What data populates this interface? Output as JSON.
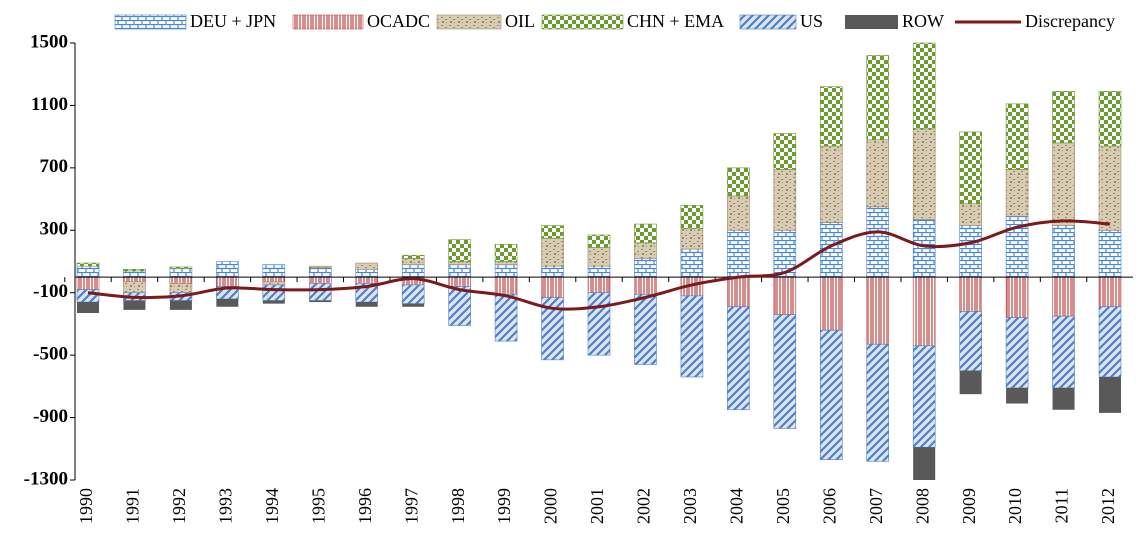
{
  "chart_data": {
    "type": "bar",
    "categories": [
      "1990",
      "1991",
      "1992",
      "1993",
      "1994",
      "1995",
      "1996",
      "1997",
      "1998",
      "1999",
      "2000",
      "2001",
      "2002",
      "2003",
      "2004",
      "2005",
      "2006",
      "2007",
      "2008",
      "2009",
      "2010",
      "2011",
      "2012"
    ],
    "ylim": [
      -1300,
      1500
    ],
    "yticks": [
      -1300,
      -900,
      -500,
      -100,
      300,
      700,
      1100,
      1500
    ],
    "series": [
      {
        "name": "DEU + JPN",
        "color": "#4a86d8",
        "pattern": "brick",
        "values": [
          70,
          40,
          55,
          100,
          80,
          60,
          50,
          80,
          80,
          80,
          70,
          70,
          120,
          180,
          300,
          300,
          350,
          450,
          370,
          330,
          390,
          330,
          300
        ]
      },
      {
        "name": "OCADC",
        "color": "#c0504d",
        "pattern": "vertical",
        "values": [
          -80,
          -30,
          -40,
          -60,
          -30,
          -40,
          -40,
          -50,
          -60,
          -110,
          -130,
          -100,
          -110,
          -120,
          -190,
          -240,
          -340,
          -430,
          -440,
          -220,
          -260,
          -250,
          -190
        ]
      },
      {
        "name": "OIL",
        "color": "#9c8763",
        "pattern": "speckle",
        "values": [
          0,
          -70,
          -60,
          0,
          -20,
          10,
          40,
          40,
          20,
          20,
          180,
          120,
          100,
          130,
          220,
          390,
          490,
          430,
          580,
          140,
          300,
          530,
          540
        ]
      },
      {
        "name": "CHN + EMA",
        "color": "#6b9a2e",
        "pattern": "checker",
        "values": [
          20,
          10,
          10,
          0,
          0,
          0,
          0,
          20,
          140,
          110,
          80,
          80,
          120,
          150,
          180,
          230,
          380,
          540,
          550,
          460,
          420,
          330,
          350
        ]
      },
      {
        "name": "US",
        "color": "#4f7fc4",
        "pattern": "diagonal",
        "values": [
          -80,
          -50,
          -50,
          -80,
          -100,
          -110,
          -120,
          -120,
          -250,
          -300,
          -400,
          -400,
          -450,
          -520,
          -660,
          -730,
          -830,
          -750,
          -650,
          -380,
          -450,
          -460,
          -450
        ]
      },
      {
        "name": "ROW",
        "color": "#595959",
        "pattern": "solid",
        "values": [
          -70,
          -60,
          -60,
          -50,
          -20,
          -10,
          -30,
          -20,
          0,
          0,
          0,
          0,
          0,
          0,
          0,
          0,
          0,
          0,
          -210,
          -150,
          -100,
          -140,
          -230
        ]
      },
      {
        "name": "Discrepancy",
        "color": "#7b1a1a",
        "type": "line",
        "values": [
          -100,
          -130,
          -120,
          -70,
          -80,
          -80,
          -60,
          -10,
          -80,
          -120,
          -200,
          -190,
          -130,
          -50,
          0,
          30,
          200,
          290,
          200,
          220,
          320,
          360,
          340
        ]
      }
    ]
  }
}
